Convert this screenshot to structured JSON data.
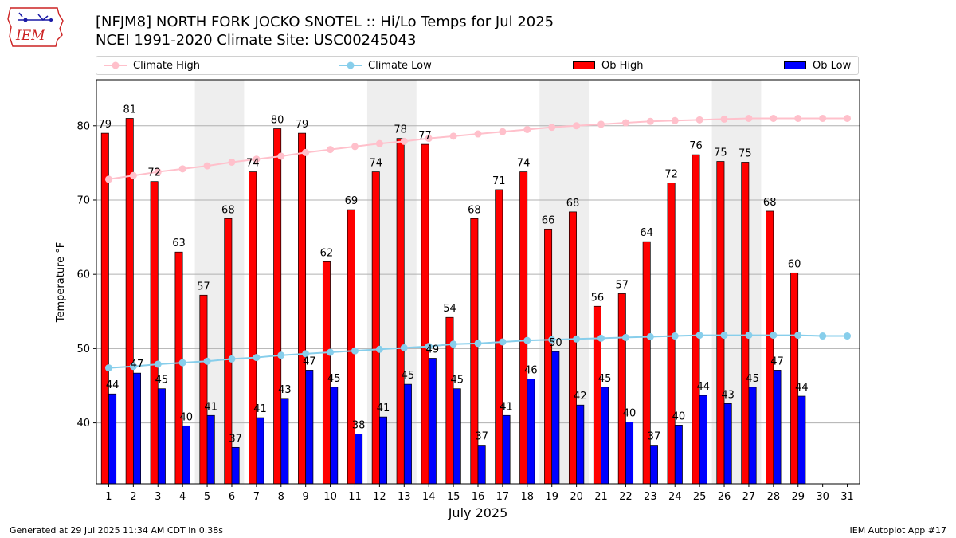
{
  "header": {
    "title_line1": "[NFJM8] NORTH FORK JOCKO SNOTEL :: Hi/Lo Temps for Jul 2025",
    "title_line2": "NCEI 1991-2020 Climate Site: USC00245043",
    "logo_text": "IEM"
  },
  "legend": {
    "climate_high": "Climate High",
    "climate_low": "Climate Low",
    "ob_high": "Ob High",
    "ob_low": "Ob Low"
  },
  "colors": {
    "ob_high": "#ff0000",
    "ob_low": "#0000ff",
    "climate_high": "#ffc0cb",
    "climate_low": "#87ceeb",
    "weekend_band": "#eeeeee",
    "grid": "#b0b0b0",
    "logo_red": "#cc2222",
    "logo_blue": "#1a1aa6"
  },
  "footer": {
    "left": "Generated at 29 Jul 2025 11:34 AM CDT in 0.38s",
    "right": "IEM Autoplot App #17"
  },
  "chart_data": {
    "type": "bar",
    "xlabel": "July 2025",
    "ylabel": "Temperature °F",
    "ylim": [
      31.8,
      86.2
    ],
    "yticks": [
      40,
      50,
      60,
      70,
      80
    ],
    "grid": "horizontal",
    "categories": [
      "1",
      "2",
      "3",
      "4",
      "5",
      "6",
      "7",
      "8",
      "9",
      "10",
      "11",
      "12",
      "13",
      "14",
      "15",
      "16",
      "17",
      "18",
      "19",
      "20",
      "21",
      "22",
      "23",
      "24",
      "25",
      "26",
      "27",
      "28",
      "29",
      "30",
      "31"
    ],
    "shaded_days": [
      [
        5,
        6
      ],
      [
        12,
        13
      ],
      [
        19,
        20
      ],
      [
        26,
        27
      ]
    ],
    "series": [
      {
        "name": "Ob High",
        "kind": "bar",
        "values": [
          79,
          81,
          72.5,
          63,
          57.2,
          67.5,
          73.8,
          79.6,
          79,
          61.7,
          68.7,
          73.8,
          78.3,
          77.5,
          54.2,
          67.5,
          71.4,
          73.8,
          66.1,
          68.4,
          55.7,
          57.4,
          64.4,
          72.3,
          76.1,
          75.2,
          75.1,
          68.5,
          60.2,
          null,
          null
        ],
        "labels": [
          "79",
          "81",
          "72",
          "63",
          "57",
          "68",
          "74",
          "80",
          "79",
          "62",
          "69",
          "74",
          "78",
          "77",
          "54",
          "68",
          "71",
          "74",
          "66",
          "68",
          "56",
          "57",
          "64",
          "72",
          "76",
          "75",
          "75",
          "68",
          "60",
          "",
          ""
        ]
      },
      {
        "name": "Ob Low",
        "kind": "bar",
        "values": [
          43.9,
          46.7,
          44.6,
          39.6,
          41,
          36.7,
          40.7,
          43.3,
          47.1,
          44.8,
          38.5,
          40.8,
          45.2,
          48.7,
          44.6,
          37,
          41,
          45.9,
          49.6,
          42.4,
          44.8,
          40.1,
          37,
          39.7,
          43.7,
          42.6,
          44.8,
          47.1,
          43.6,
          null,
          null
        ],
        "labels": [
          "44",
          "47",
          "45",
          "40",
          "41",
          "37",
          "41",
          "43",
          "47",
          "45",
          "38",
          "41",
          "45",
          "49",
          "45",
          "37",
          "41",
          "46",
          "50",
          "42",
          "45",
          "40",
          "37",
          "40",
          "44",
          "43",
          "45",
          "47",
          "44",
          "",
          ""
        ]
      },
      {
        "name": "Climate High",
        "kind": "line",
        "values": [
          72.8,
          73.3,
          73.8,
          74.2,
          74.6,
          75.1,
          75.5,
          75.9,
          76.4,
          76.8,
          77.2,
          77.6,
          77.9,
          78.3,
          78.6,
          78.9,
          79.2,
          79.5,
          79.8,
          80,
          80.2,
          80.4,
          80.6,
          80.7,
          80.8,
          80.9,
          81,
          81,
          81,
          81,
          81
        ]
      },
      {
        "name": "Climate Low",
        "kind": "line",
        "values": [
          47.4,
          47.6,
          47.9,
          48.1,
          48.3,
          48.6,
          48.8,
          49.1,
          49.3,
          49.5,
          49.7,
          49.9,
          50.1,
          50.3,
          50.6,
          50.7,
          50.9,
          51.1,
          51.2,
          51.3,
          51.4,
          51.5,
          51.6,
          51.7,
          51.8,
          51.8,
          51.8,
          51.8,
          51.8,
          51.7,
          51.7
        ]
      }
    ]
  }
}
